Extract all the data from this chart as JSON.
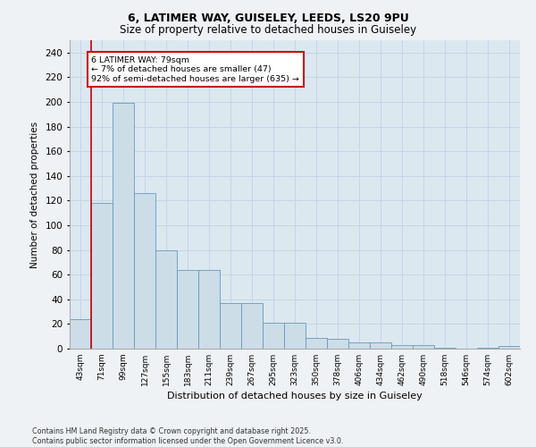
{
  "title_line1": "6, LATIMER WAY, GUISELEY, LEEDS, LS20 9PU",
  "title_line2": "Size of property relative to detached houses in Guiseley",
  "xlabel": "Distribution of detached houses by size in Guiseley",
  "ylabel": "Number of detached properties",
  "categories": [
    "43sqm",
    "71sqm",
    "99sqm",
    "127sqm",
    "155sqm",
    "183sqm",
    "211sqm",
    "239sqm",
    "267sqm",
    "295sqm",
    "323sqm",
    "350sqm",
    "378sqm",
    "406sqm",
    "434sqm",
    "462sqm",
    "490sqm",
    "518sqm",
    "546sqm",
    "574sqm",
    "602sqm"
  ],
  "values": [
    24,
    118,
    199,
    126,
    80,
    64,
    64,
    37,
    37,
    21,
    21,
    9,
    8,
    5,
    5,
    3,
    3,
    1,
    0,
    1,
    2
  ],
  "bar_color": "#ccdde8",
  "bar_edge_color": "#6699bb",
  "grid_color": "#c5d5e5",
  "background_color": "#dce8f0",
  "fig_background": "#eef2f5",
  "vline_color": "#cc0000",
  "vline_x": 0.5,
  "annotation_text": "6 LATIMER WAY: 79sqm\n← 7% of detached houses are smaller (47)\n92% of semi-detached houses are larger (635) →",
  "annotation_box_color": "#ffffff",
  "annotation_box_edge": "#cc0000",
  "ylim": [
    0,
    250
  ],
  "yticks": [
    0,
    20,
    40,
    60,
    80,
    100,
    120,
    140,
    160,
    180,
    200,
    220,
    240
  ],
  "footer_line1": "Contains HM Land Registry data © Crown copyright and database right 2025.",
  "footer_line2": "Contains public sector information licensed under the Open Government Licence v3.0."
}
